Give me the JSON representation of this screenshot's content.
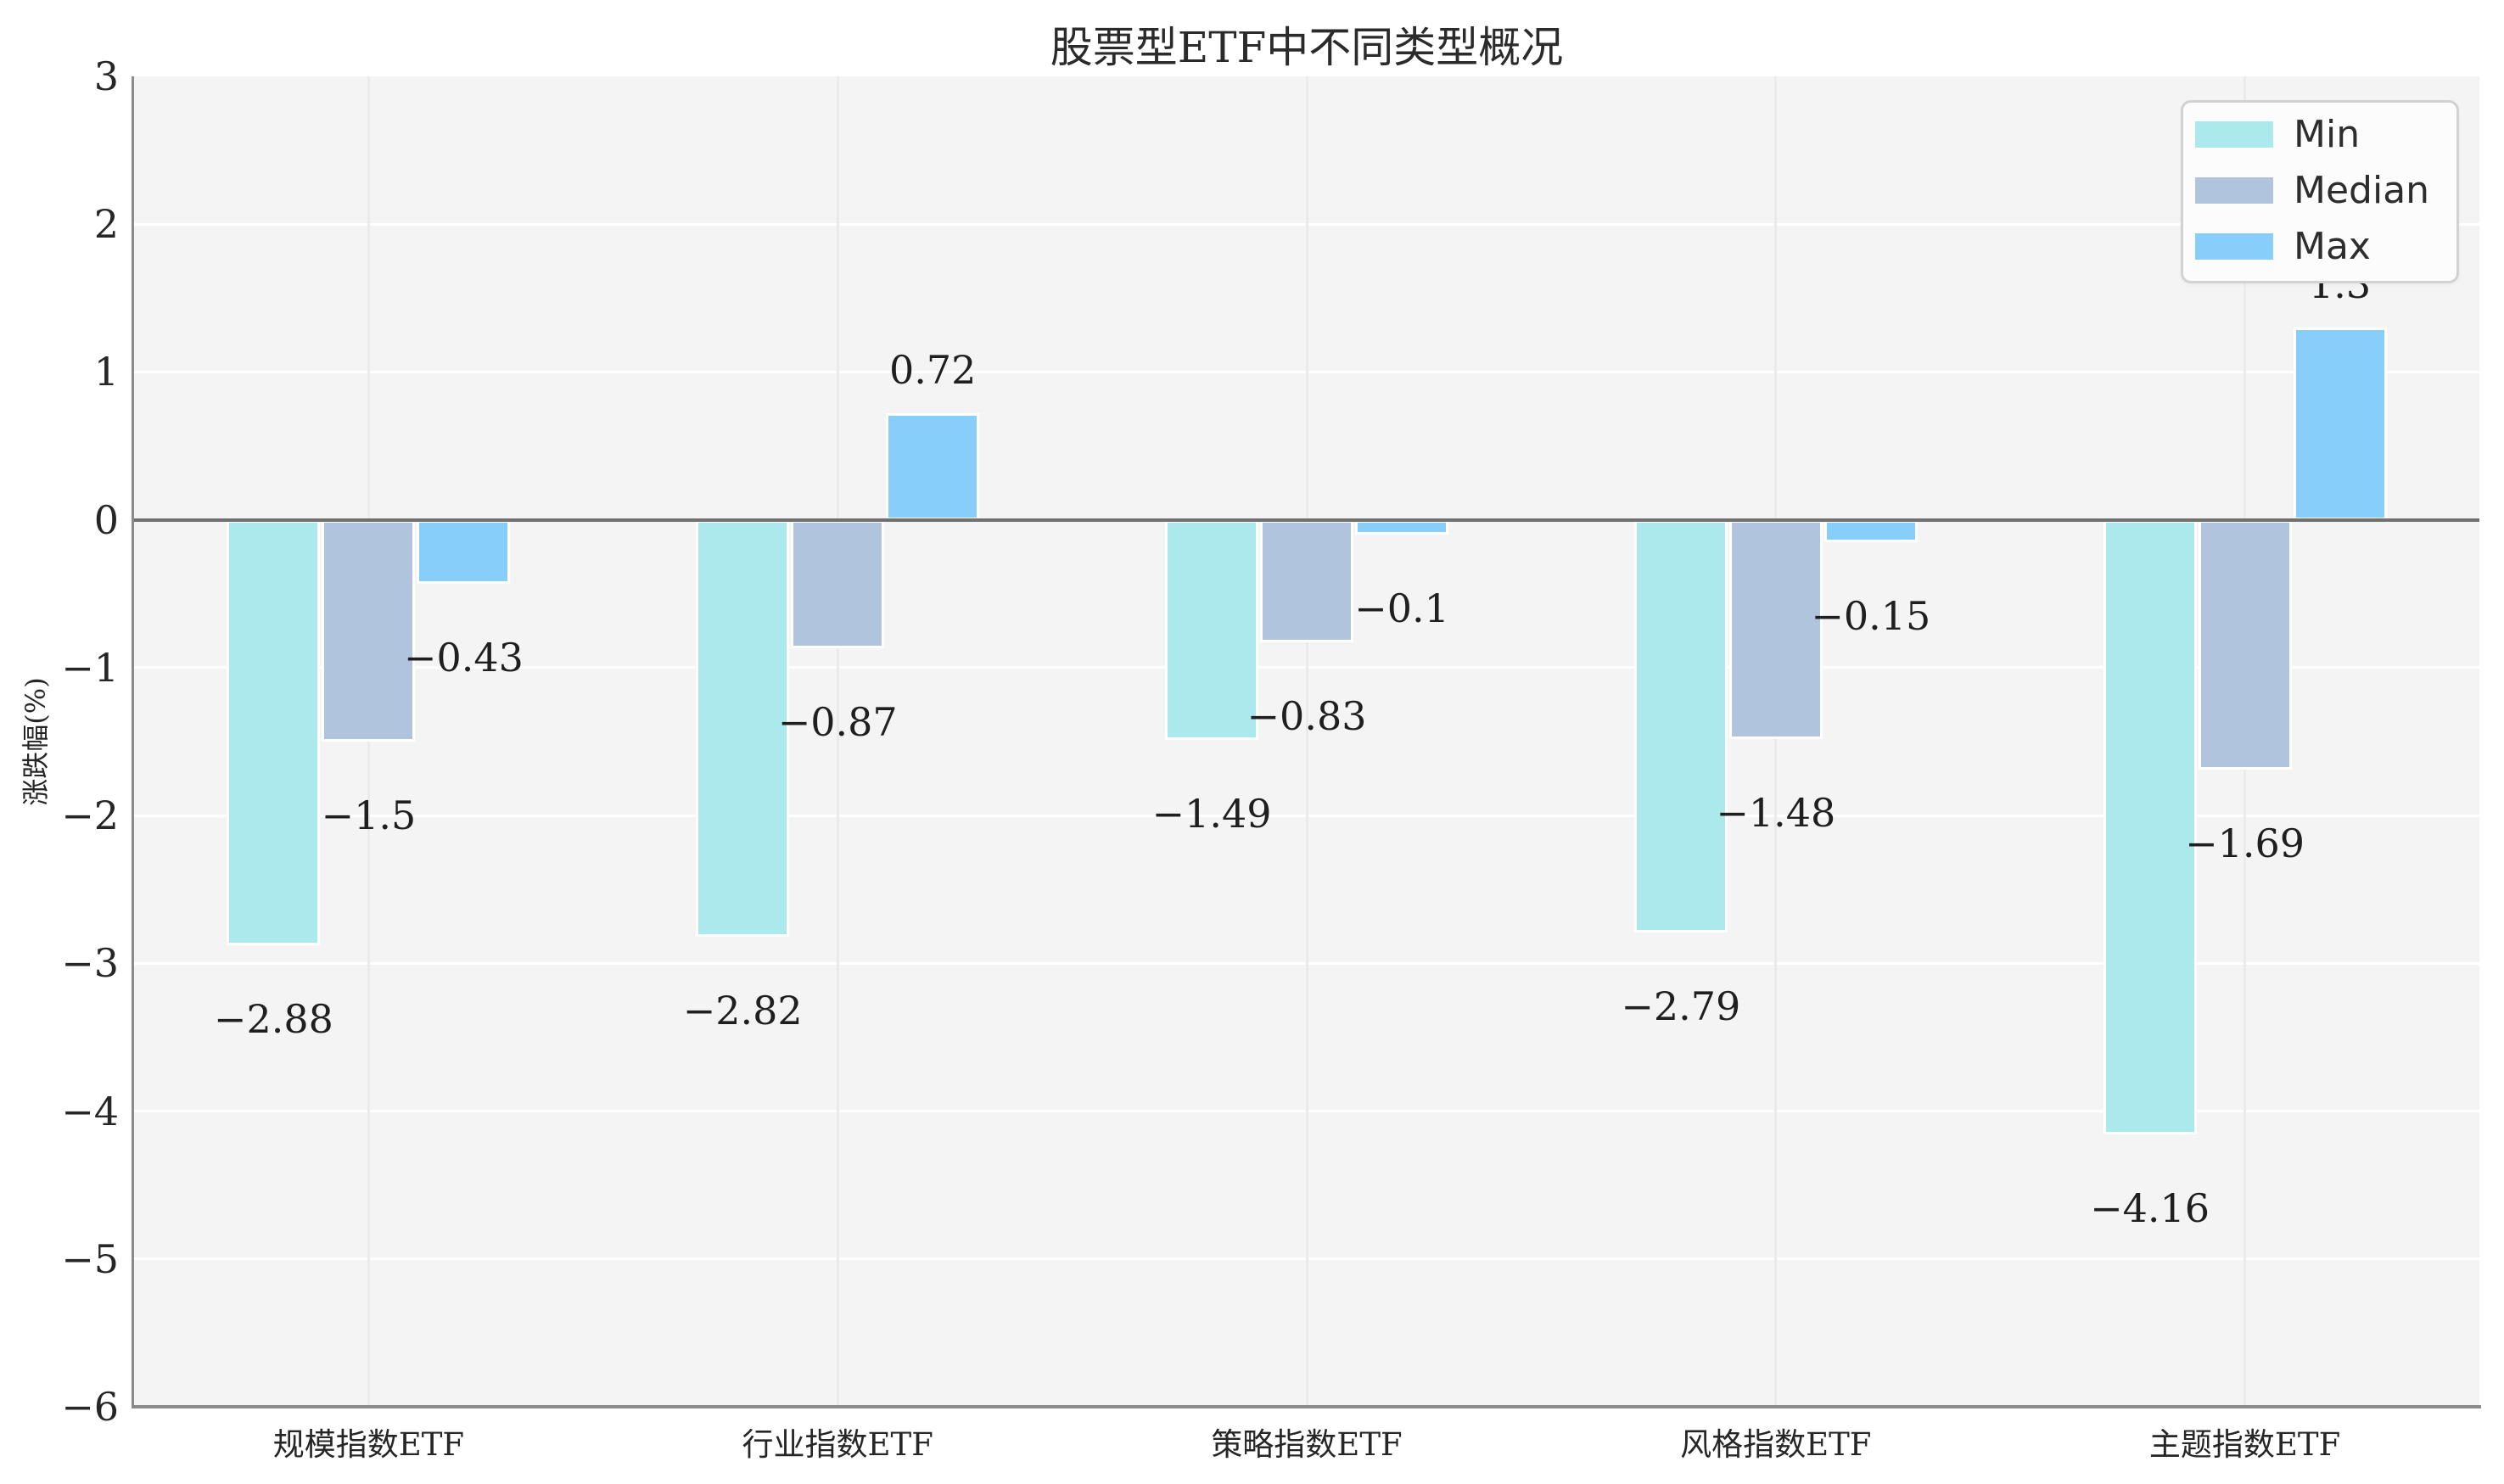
{
  "chart_data": {
    "type": "bar",
    "title": "股票型ETF中不同类型概况",
    "ylabel": "涨跌幅(%)",
    "xlabel": "",
    "categories": [
      "规模指数ETF",
      "行业指数ETF",
      "策略指数ETF",
      "风格指数ETF",
      "主题指数ETF"
    ],
    "series": [
      {
        "name": "Min",
        "color": "#ace9ec",
        "values": [
          -2.88,
          -2.82,
          -1.49,
          -2.79,
          -4.16
        ]
      },
      {
        "name": "Median",
        "color": "#b0c4de",
        "values": [
          -1.5,
          -0.87,
          -0.83,
          -1.48,
          -1.69
        ]
      },
      {
        "name": "Max",
        "color": "#87cefa",
        "values": [
          -0.43,
          0.72,
          -0.1,
          -0.15,
          1.3
        ]
      }
    ],
    "ylim": [
      -6,
      3
    ],
    "yticks": [
      3,
      2,
      1,
      0,
      -1,
      -2,
      -3,
      -4,
      -5,
      -6
    ],
    "grid": true,
    "legend_position": "upper-right"
  },
  "legend": {
    "labels": [
      "Min",
      "Median",
      "Max"
    ]
  },
  "style_colors": {
    "plot_bg": "#f4f4f4",
    "grid_horizontal": "#ffffff",
    "grid_vertical": "#ebebeb",
    "zero_line": "#707070",
    "spine": "#8a8a8a",
    "text": "#262626",
    "legend_bg": "#fcfcfc",
    "legend_border": "#d2d2d2"
  }
}
